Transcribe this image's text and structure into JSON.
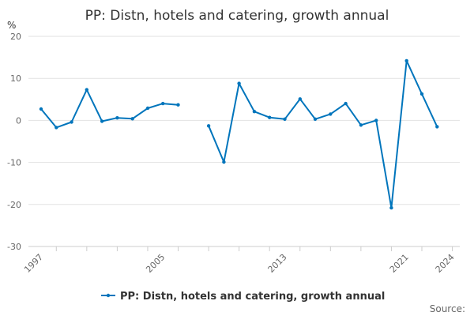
{
  "chart_data": {
    "type": "line",
    "title": "PP: Distn, hotels and catering, growth annual",
    "unit_label": "%",
    "x": [
      1997,
      1998,
      1999,
      2000,
      2001,
      2002,
      2003,
      2004,
      2005,
      2006,
      2007,
      2008,
      2009,
      2010,
      2011,
      2012,
      2013,
      2014,
      2015,
      2016,
      2017,
      2018,
      2019,
      2020,
      2021,
      2022,
      2023
    ],
    "series": [
      {
        "name": "PP: Distn, hotels and catering, growth annual",
        "color": "#0075bc",
        "values": [
          2.7,
          -1.7,
          -0.4,
          7.3,
          -0.2,
          0.6,
          0.4,
          2.9,
          4.0,
          3.7,
          null,
          -1.3,
          -9.9,
          8.8,
          2.1,
          0.7,
          0.3,
          5.1,
          0.3,
          1.5,
          4.0,
          -1.1,
          0.0,
          -20.8,
          14.2,
          6.3,
          -1.5
        ]
      }
    ],
    "x_ticks": [
      "1997",
      "2005",
      "2013",
      "2021",
      "2024"
    ],
    "y_ticks": [
      "20",
      "10",
      "0",
      "-10",
      "-20",
      "-30"
    ],
    "xlim": [
      1997,
      2024
    ],
    "ylim": [
      -30,
      20
    ],
    "grid": "horizontal",
    "legend_position": "bottom",
    "source_label": "Source:"
  }
}
